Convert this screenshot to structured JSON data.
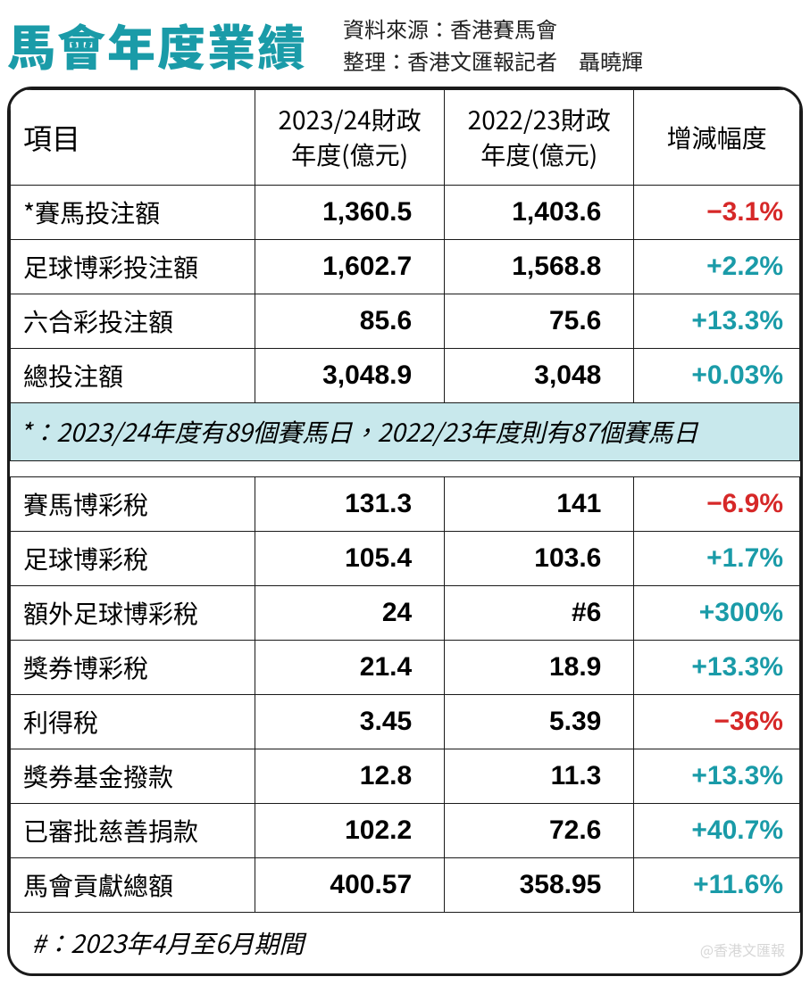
{
  "title": "馬會年度業績",
  "meta": {
    "source_label": "資料來源：",
    "source_value": "香港賽馬會",
    "compiled_label": "整理：",
    "compiled_value": "香港文匯報記者　聶曉輝"
  },
  "columns": {
    "item": "項目",
    "fy1": "2023/24財政年度(億元)",
    "fy2": "2022/23財政年度(億元)",
    "change": "增減幅度"
  },
  "section1": [
    {
      "item": "*賽馬投注額",
      "fy1": "1,360.5",
      "fy2": "1,403.6",
      "change": "−3.1%",
      "dir": "neg"
    },
    {
      "item": "足球博彩投注額",
      "fy1": "1,602.7",
      "fy2": "1,568.8",
      "change": "+2.2%",
      "dir": "pos"
    },
    {
      "item": "六合彩投注額",
      "fy1": "85.6",
      "fy2": "75.6",
      "change": "+13.3%",
      "dir": "pos"
    },
    {
      "item": "總投注額",
      "fy1": "3,048.9",
      "fy2": "3,048",
      "change": "+0.03%",
      "dir": "pos"
    }
  ],
  "note1": "*：2023/24年度有89個賽馬日，2022/23年度則有87個賽馬日",
  "section2": [
    {
      "item": "賽馬博彩稅",
      "fy1": "131.3",
      "fy2": "141",
      "change": "−6.9%",
      "dir": "neg"
    },
    {
      "item": "足球博彩稅",
      "fy1": "105.4",
      "fy2": "103.6",
      "change": "+1.7%",
      "dir": "pos"
    },
    {
      "item": "額外足球博彩稅",
      "fy1": "24",
      "fy2": "#6",
      "change": "+300%",
      "dir": "pos"
    },
    {
      "item": "獎券博彩稅",
      "fy1": "21.4",
      "fy2": "18.9",
      "change": "+13.3%",
      "dir": "pos"
    },
    {
      "item": "利得稅",
      "fy1": "3.45",
      "fy2": "5.39",
      "change": "−36%",
      "dir": "neg"
    },
    {
      "item": "獎券基金撥款",
      "fy1": "12.8",
      "fy2": "11.3",
      "change": "+13.3%",
      "dir": "pos"
    },
    {
      "item": "已審批慈善捐款",
      "fy1": "102.2",
      "fy2": "72.6",
      "change": "+40.7%",
      "dir": "pos"
    },
    {
      "item": "馬會貢獻總額",
      "fy1": "400.57",
      "fy2": "358.95",
      "change": "+11.6%",
      "dir": "pos"
    }
  ],
  "note2": "#：2023年4月至6月期間",
  "watermark": "@香港文匯報",
  "style": {
    "accent_color": "#1a9ba8",
    "positive_color": "#1a9ba8",
    "negative_color": "#d62828",
    "note_bg": "#c8e8ec",
    "border_color": "#1a1a1a",
    "title_fontsize": 54,
    "cell_fontsize": 28,
    "num_fontsize": 30
  }
}
